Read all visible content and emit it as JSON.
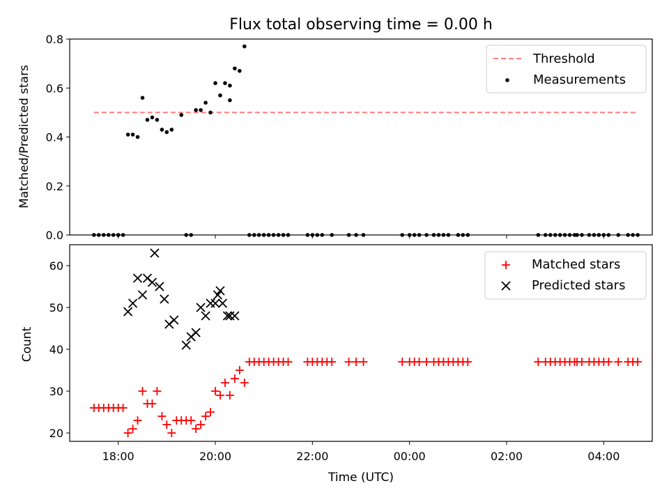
{
  "chart_data": [
    {
      "type": "scatter",
      "title": "Flux total observing time = 0.00 h",
      "xlabel": "",
      "ylabel": "Matched/Predicted stars",
      "ylim": [
        0,
        0.8
      ],
      "yticks": [
        "0.0",
        "0.2",
        "0.4",
        "0.6",
        "0.8"
      ],
      "xlim_hours": [
        17.0,
        29.0
      ],
      "grid": false,
      "legend_placement": "top-right",
      "threshold": {
        "name": "Threshold",
        "value": 0.5,
        "x_start": 17.5,
        "x_end": 28.7,
        "color": "#ff7b7b"
      },
      "series": [
        {
          "name": "Measurements",
          "color": "#000000",
          "x_hours": [
            17.5,
            17.6,
            17.7,
            17.8,
            17.9,
            18.0,
            18.1,
            18.2,
            18.3,
            18.4,
            18.5,
            18.6,
            18.7,
            18.8,
            18.9,
            19.0,
            19.1,
            19.3,
            19.4,
            19.5,
            19.6,
            19.7,
            19.8,
            19.9,
            20.0,
            20.1,
            20.2,
            20.3,
            20.3,
            20.4,
            20.5,
            20.6,
            20.7,
            20.8,
            20.9,
            21.0,
            21.1,
            21.2,
            21.3,
            21.4,
            21.5,
            21.9,
            22.0,
            22.1,
            22.2,
            22.4,
            22.75,
            22.9,
            23.05,
            23.85,
            24.0,
            24.1,
            24.2,
            24.35,
            24.5,
            24.6,
            24.7,
            24.8,
            25.0,
            25.1,
            25.2,
            26.65,
            26.8,
            26.9,
            27.0,
            27.1,
            27.2,
            27.3,
            27.4,
            27.45,
            27.55,
            27.7,
            27.8,
            27.9,
            28.0,
            28.1,
            28.3,
            28.5,
            28.6,
            28.7
          ],
          "y": [
            0,
            0,
            0,
            0,
            0,
            0,
            0,
            0.41,
            0.41,
            0.4,
            0.56,
            0.47,
            0.48,
            0.47,
            0.43,
            0.42,
            0.43,
            0.49,
            0,
            0,
            0.51,
            0.51,
            0.54,
            0.5,
            0.62,
            0.57,
            0.62,
            0.55,
            0.61,
            0.68,
            0.67,
            0.77,
            0,
            0,
            0,
            0,
            0,
            0,
            0,
            0,
            0,
            0,
            0,
            0,
            0,
            0,
            0,
            0,
            0,
            0,
            0,
            0,
            0,
            0,
            0,
            0,
            0,
            0,
            0,
            0,
            0,
            0,
            0,
            0,
            0,
            0,
            0,
            0,
            0,
            0,
            0,
            0,
            0,
            0,
            0,
            0,
            0,
            0,
            0,
            0
          ]
        }
      ]
    },
    {
      "type": "scatter",
      "title": "",
      "xlabel": "Time (UTC)",
      "ylabel": "Count",
      "ylim": [
        18,
        65
      ],
      "yticks": [
        "20",
        "30",
        "40",
        "50",
        "60"
      ],
      "xticks": [
        "18:00",
        "20:00",
        "22:00",
        "00:00",
        "02:00",
        "04:00"
      ],
      "xlim_hours": [
        17.0,
        29.0
      ],
      "grid": false,
      "legend_placement": "top-right",
      "series": [
        {
          "name": "Matched stars",
          "marker": "+",
          "color": "#ff0000",
          "x_hours": [
            17.5,
            17.6,
            17.7,
            17.8,
            17.9,
            18.0,
            18.1,
            18.2,
            18.3,
            18.4,
            18.5,
            18.6,
            18.7,
            18.8,
            18.9,
            19.0,
            19.1,
            19.2,
            19.3,
            19.4,
            19.5,
            19.6,
            19.7,
            19.8,
            19.9,
            20.0,
            20.1,
            20.2,
            20.3,
            20.4,
            20.5,
            20.6,
            20.7,
            20.8,
            20.9,
            21.0,
            21.1,
            21.2,
            21.3,
            21.4,
            21.5,
            21.9,
            22.0,
            22.1,
            22.2,
            22.3,
            22.4,
            22.75,
            22.9,
            23.05,
            23.85,
            24.0,
            24.1,
            24.2,
            24.35,
            24.5,
            24.6,
            24.7,
            24.8,
            24.9,
            25.0,
            25.1,
            25.2,
            26.65,
            26.8,
            26.9,
            27.0,
            27.1,
            27.2,
            27.3,
            27.4,
            27.45,
            27.55,
            27.7,
            27.8,
            27.9,
            28.0,
            28.1,
            28.3,
            28.5,
            28.6,
            28.7
          ],
          "y": [
            26,
            26,
            26,
            26,
            26,
            26,
            26,
            20,
            21,
            23,
            30,
            27,
            27,
            30,
            24,
            22,
            20,
            23,
            23,
            23,
            23,
            21,
            22,
            24,
            25,
            30,
            29,
            32,
            29,
            33,
            35,
            32,
            37,
            37,
            37,
            37,
            37,
            37,
            37,
            37,
            37,
            37,
            37,
            37,
            37,
            37,
            37,
            37,
            37,
            37,
            37,
            37,
            37,
            37,
            37,
            37,
            37,
            37,
            37,
            37,
            37,
            37,
            37,
            37,
            37,
            37,
            37,
            37,
            37,
            37,
            37,
            37,
            37,
            37,
            37,
            37,
            37,
            37,
            37,
            37,
            37,
            37
          ]
        },
        {
          "name": "Predicted stars",
          "marker": "x",
          "color": "#000000",
          "x_hours": [
            18.2,
            18.3,
            18.4,
            18.5,
            18.6,
            18.7,
            18.75,
            18.85,
            18.95,
            19.05,
            19.15,
            19.4,
            19.5,
            19.6,
            19.7,
            19.8,
            19.9,
            20.0,
            20.05,
            20.1,
            20.15,
            20.25,
            20.3,
            20.4
          ],
          "y": [
            49,
            51,
            57,
            53,
            57,
            56,
            63,
            55,
            52,
            46,
            47,
            41,
            43,
            44,
            50,
            48,
            51,
            51,
            53,
            54,
            51,
            48,
            48,
            48
          ]
        }
      ]
    }
  ]
}
